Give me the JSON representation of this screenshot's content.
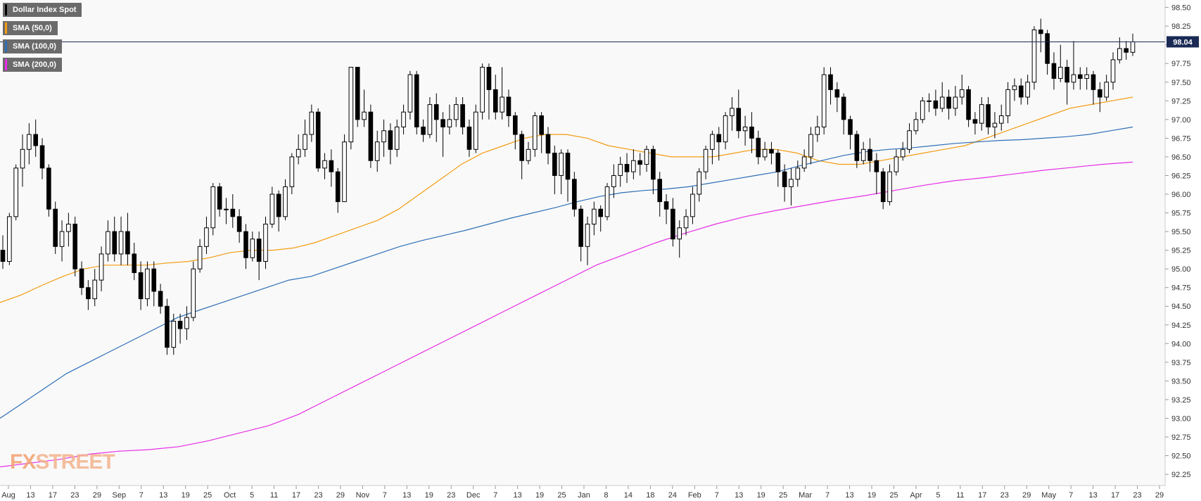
{
  "legend": [
    {
      "label": "Dollar Index Spot",
      "color": "#000000"
    },
    {
      "label": "SMA (50,0)",
      "color": "#f39c12"
    },
    {
      "label": "SMA (100,0)",
      "color": "#2e6fb7"
    },
    {
      "label": "SMA (200,0)",
      "color": "#e62ee6"
    }
  ],
  "watermark": {
    "part1": "FX",
    "part2": "STREET"
  },
  "chart_data": {
    "type": "candlestick",
    "title": "Dollar Index Spot",
    "last_price": 98.04,
    "last_price_label": "98.04",
    "ylim": [
      92.1,
      98.6
    ],
    "y_ticks": [
      "92.25",
      "92.50",
      "92.75",
      "93.00",
      "93.25",
      "93.50",
      "93.75",
      "94.00",
      "94.25",
      "94.50",
      "94.75",
      "95.00",
      "95.25",
      "95.50",
      "95.75",
      "96.00",
      "96.25",
      "96.50",
      "96.75",
      "97.00",
      "97.25",
      "97.50",
      "97.75",
      "98.00",
      "98.25",
      "98.50"
    ],
    "x_ticks": [
      "Aug",
      "13",
      "17",
      "23",
      "29",
      "Sep",
      "7",
      "13",
      "19",
      "25",
      "Oct",
      "5",
      "11",
      "17",
      "23",
      "29",
      "Nov",
      "7",
      "13",
      "19",
      "23",
      "Dec",
      "7",
      "13",
      "19",
      "25",
      "Jan",
      "8",
      "14",
      "18",
      "24",
      "Feb",
      "7",
      "13",
      "19",
      "25",
      "Mar",
      "7",
      "13",
      "19",
      "25",
      "Apr",
      "5",
      "11",
      "17",
      "23",
      "29",
      "May",
      "7",
      "13",
      "17",
      "23",
      "29"
    ],
    "candles": [
      [
        95.25,
        95.1,
        95.45,
        95.0
      ],
      [
        95.1,
        95.7,
        95.75,
        95.05
      ],
      [
        95.7,
        96.35,
        96.4,
        95.65
      ],
      [
        96.35,
        96.6,
        96.8,
        96.1
      ],
      [
        96.6,
        96.8,
        96.95,
        96.4
      ],
      [
        96.8,
        96.65,
        97.0,
        96.5
      ],
      [
        96.65,
        96.35,
        96.75,
        96.2
      ],
      [
        96.35,
        95.8,
        96.4,
        95.7
      ],
      [
        95.8,
        95.3,
        95.9,
        95.2
      ],
      [
        95.3,
        95.5,
        95.65,
        95.1
      ],
      [
        95.5,
        95.6,
        95.75,
        95.3
      ],
      [
        95.6,
        95.0,
        95.7,
        94.9
      ],
      [
        95.0,
        94.75,
        95.1,
        94.65
      ],
      [
        94.75,
        94.6,
        94.85,
        94.45
      ],
      [
        94.6,
        94.85,
        95.0,
        94.5
      ],
      [
        94.85,
        95.2,
        95.3,
        94.7
      ],
      [
        95.2,
        95.5,
        95.65,
        95.1
      ],
      [
        95.5,
        95.2,
        95.7,
        95.1
      ],
      [
        95.2,
        95.5,
        95.7,
        95.05
      ],
      [
        95.5,
        95.2,
        95.75,
        95.05
      ],
      [
        95.2,
        94.95,
        95.35,
        94.85
      ],
      [
        94.95,
        94.6,
        95.1,
        94.45
      ],
      [
        94.6,
        95.0,
        95.1,
        94.5
      ],
      [
        95.0,
        94.7,
        95.1,
        94.5
      ],
      [
        94.7,
        94.5,
        94.8,
        94.4
      ],
      [
        94.5,
        93.95,
        94.6,
        93.85
      ],
      [
        93.95,
        94.3,
        94.4,
        93.85
      ],
      [
        94.3,
        94.2,
        94.4,
        94.0
      ],
      [
        94.2,
        94.35,
        94.5,
        94.05
      ],
      [
        94.35,
        95.0,
        95.1,
        94.3
      ],
      [
        95.0,
        95.3,
        95.4,
        94.95
      ],
      [
        95.3,
        95.55,
        95.7,
        95.2
      ],
      [
        95.55,
        96.1,
        96.15,
        95.45
      ],
      [
        96.1,
        95.8,
        96.15,
        95.7
      ],
      [
        95.8,
        95.8,
        95.95,
        95.6
      ],
      [
        95.8,
        95.7,
        96.0,
        95.55
      ],
      [
        95.7,
        95.5,
        95.8,
        95.35
      ],
      [
        95.5,
        95.15,
        95.6,
        95.0
      ],
      [
        95.15,
        95.4,
        95.5,
        95.1
      ],
      [
        95.4,
        95.1,
        95.5,
        94.85
      ],
      [
        95.1,
        95.6,
        95.7,
        95.0
      ],
      [
        95.6,
        96.0,
        96.1,
        95.55
      ],
      [
        96.0,
        95.7,
        96.05,
        95.5
      ],
      [
        95.7,
        96.1,
        96.2,
        95.65
      ],
      [
        96.1,
        96.5,
        96.55,
        96.0
      ],
      [
        96.5,
        96.6,
        96.8,
        96.4
      ],
      [
        96.6,
        96.8,
        97.0,
        96.5
      ],
      [
        96.8,
        97.1,
        97.2,
        96.7
      ],
      [
        97.1,
        96.35,
        97.15,
        96.3
      ],
      [
        96.35,
        96.45,
        96.55,
        96.2
      ],
      [
        96.45,
        96.3,
        96.6,
        96.1
      ],
      [
        96.3,
        95.9,
        96.35,
        95.75
      ],
      [
        95.9,
        96.7,
        96.8,
        95.9
      ],
      [
        96.7,
        97.7,
        97.7,
        96.6
      ],
      [
        97.7,
        97.0,
        97.7,
        96.9
      ],
      [
        97.0,
        97.1,
        97.4,
        96.9
      ],
      [
        97.1,
        96.45,
        97.2,
        96.35
      ],
      [
        96.45,
        96.7,
        96.85,
        96.3
      ],
      [
        96.7,
        96.85,
        97.0,
        96.5
      ],
      [
        96.85,
        96.6,
        96.95,
        96.4
      ],
      [
        96.6,
        96.9,
        97.0,
        96.5
      ],
      [
        96.9,
        97.1,
        97.2,
        96.8
      ],
      [
        97.1,
        97.6,
        97.65,
        97.0
      ],
      [
        97.6,
        96.9,
        97.65,
        96.8
      ],
      [
        96.9,
        96.8,
        97.0,
        96.7
      ],
      [
        96.8,
        97.2,
        97.3,
        96.75
      ],
      [
        97.2,
        97.0,
        97.35,
        96.7
      ],
      [
        97.0,
        96.9,
        97.1,
        96.5
      ],
      [
        96.9,
        97.0,
        97.2,
        96.8
      ],
      [
        97.0,
        97.2,
        97.3,
        96.9
      ],
      [
        97.2,
        96.9,
        97.3,
        96.8
      ],
      [
        96.9,
        96.6,
        97.0,
        96.5
      ],
      [
        96.6,
        97.1,
        97.2,
        96.55
      ],
      [
        97.1,
        97.7,
        97.75,
        97.0
      ],
      [
        97.7,
        97.4,
        97.75,
        97.0
      ],
      [
        97.4,
        97.1,
        97.6,
        97.0
      ],
      [
        97.1,
        97.3,
        97.7,
        97.0
      ],
      [
        97.3,
        97.05,
        97.4,
        96.9
      ],
      [
        97.05,
        96.8,
        97.1,
        96.6
      ],
      [
        96.8,
        96.45,
        96.85,
        96.2
      ],
      [
        96.45,
        96.6,
        96.7,
        96.4
      ],
      [
        96.6,
        97.05,
        97.1,
        96.5
      ],
      [
        97.05,
        96.8,
        97.1,
        96.55
      ],
      [
        96.8,
        96.55,
        96.9,
        96.4
      ],
      [
        96.55,
        96.25,
        96.65,
        96.0
      ],
      [
        96.25,
        96.55,
        96.6,
        96.0
      ],
      [
        96.55,
        96.2,
        96.6,
        95.9
      ],
      [
        96.2,
        95.8,
        96.3,
        95.7
      ],
      [
        95.8,
        95.3,
        95.85,
        95.1
      ],
      [
        95.3,
        95.6,
        95.7,
        95.05
      ],
      [
        95.6,
        95.8,
        95.9,
        95.45
      ],
      [
        95.8,
        95.7,
        95.85,
        95.5
      ],
      [
        95.7,
        96.1,
        96.15,
        95.65
      ],
      [
        96.1,
        96.25,
        96.4,
        95.95
      ],
      [
        96.25,
        96.4,
        96.5,
        96.1
      ],
      [
        96.4,
        96.3,
        96.55,
        96.15
      ],
      [
        96.3,
        96.45,
        96.6,
        96.2
      ],
      [
        96.45,
        96.4,
        96.55,
        96.25
      ],
      [
        96.4,
        96.6,
        96.65,
        96.3
      ],
      [
        96.6,
        96.2,
        96.65,
        96.0
      ],
      [
        96.2,
        95.9,
        96.3,
        95.7
      ],
      [
        95.9,
        95.8,
        96.0,
        95.6
      ],
      [
        95.8,
        95.4,
        95.95,
        95.3
      ],
      [
        95.4,
        95.55,
        95.65,
        95.15
      ],
      [
        95.55,
        95.7,
        95.8,
        95.45
      ],
      [
        95.7,
        96.0,
        96.1,
        95.6
      ],
      [
        96.0,
        96.3,
        96.35,
        95.9
      ],
      [
        96.3,
        96.6,
        96.65,
        96.2
      ],
      [
        96.6,
        96.8,
        96.85,
        96.4
      ],
      [
        96.8,
        96.7,
        96.9,
        96.45
      ],
      [
        96.7,
        97.05,
        97.1,
        96.6
      ],
      [
        97.05,
        97.15,
        97.3,
        96.85
      ],
      [
        97.15,
        96.85,
        97.4,
        96.75
      ],
      [
        96.85,
        96.9,
        97.05,
        96.65
      ],
      [
        96.9,
        96.75,
        97.1,
        96.55
      ],
      [
        96.75,
        96.5,
        96.85,
        96.4
      ],
      [
        96.5,
        96.6,
        96.7,
        96.45
      ],
      [
        96.6,
        96.55,
        96.7,
        96.4
      ],
      [
        96.55,
        96.3,
        96.6,
        96.1
      ],
      [
        96.3,
        96.1,
        96.4,
        95.9
      ],
      [
        96.1,
        96.2,
        96.35,
        95.85
      ],
      [
        96.2,
        96.35,
        96.45,
        96.1
      ],
      [
        96.35,
        96.5,
        96.6,
        96.3
      ],
      [
        96.5,
        96.8,
        96.9,
        96.4
      ],
      [
        96.8,
        96.9,
        97.05,
        96.7
      ],
      [
        96.9,
        97.6,
        97.7,
        96.8
      ],
      [
        97.6,
        97.4,
        97.7,
        97.2
      ],
      [
        97.4,
        97.3,
        97.5,
        97.1
      ],
      [
        97.3,
        97.0,
        97.35,
        96.8
      ],
      [
        97.0,
        96.8,
        97.05,
        96.6
      ],
      [
        96.8,
        96.45,
        96.85,
        96.35
      ],
      [
        96.45,
        96.6,
        96.7,
        96.4
      ],
      [
        96.6,
        96.45,
        96.75,
        96.3
      ],
      [
        96.45,
        96.3,
        96.55,
        96.0
      ],
      [
        96.3,
        95.9,
        96.35,
        95.8
      ],
      [
        95.9,
        96.3,
        96.4,
        95.85
      ],
      [
        96.3,
        96.5,
        96.6,
        96.25
      ],
      [
        96.5,
        96.6,
        96.7,
        96.45
      ],
      [
        96.6,
        96.85,
        96.95,
        96.55
      ],
      [
        96.85,
        97.0,
        97.1,
        96.8
      ],
      [
        97.0,
        97.25,
        97.3,
        96.95
      ],
      [
        97.25,
        97.25,
        97.35,
        97.1
      ],
      [
        97.25,
        97.15,
        97.4,
        97.05
      ],
      [
        97.15,
        97.3,
        97.5,
        97.1
      ],
      [
        97.3,
        97.15,
        97.4,
        97.0
      ],
      [
        97.15,
        97.3,
        97.45,
        97.05
      ],
      [
        97.3,
        97.4,
        97.6,
        97.2
      ],
      [
        97.4,
        97.0,
        97.45,
        96.9
      ],
      [
        97.0,
        96.95,
        97.1,
        96.8
      ],
      [
        96.95,
        97.2,
        97.3,
        96.85
      ],
      [
        97.2,
        96.9,
        97.3,
        96.8
      ],
      [
        96.9,
        96.95,
        97.1,
        96.75
      ],
      [
        96.95,
        97.05,
        97.2,
        96.85
      ],
      [
        97.05,
        97.4,
        97.5,
        96.95
      ],
      [
        97.4,
        97.45,
        97.55,
        97.25
      ],
      [
        97.45,
        97.3,
        97.55,
        97.2
      ],
      [
        97.3,
        97.5,
        97.6,
        97.2
      ],
      [
        97.5,
        98.2,
        98.25,
        97.4
      ],
      [
        98.2,
        98.15,
        98.35,
        97.9
      ],
      [
        98.15,
        97.75,
        98.2,
        97.6
      ],
      [
        97.75,
        97.55,
        97.9,
        97.4
      ],
      [
        97.55,
        97.7,
        98.0,
        97.5
      ],
      [
        97.7,
        97.5,
        97.8,
        97.2
      ],
      [
        97.5,
        97.6,
        98.05,
        97.4
      ],
      [
        97.6,
        97.55,
        97.7,
        97.4
      ],
      [
        97.55,
        97.6,
        97.7,
        97.4
      ],
      [
        97.6,
        97.4,
        97.65,
        97.2
      ],
      [
        97.4,
        97.3,
        97.5,
        97.1
      ],
      [
        97.3,
        97.5,
        97.6,
        97.25
      ],
      [
        97.5,
        97.8,
        97.9,
        97.4
      ],
      [
        97.8,
        97.95,
        98.1,
        97.75
      ],
      [
        97.95,
        97.9,
        98.05,
        97.8
      ],
      [
        97.9,
        98.04,
        98.15,
        97.85
      ]
    ],
    "series": [
      {
        "name": "SMA (50,0)",
        "color": "#f39c12",
        "values": [
          94.55,
          94.65,
          94.78,
          94.9,
          95.0,
          95.05,
          95.05,
          95.05,
          95.08,
          95.1,
          95.15,
          95.22,
          95.25,
          95.25,
          95.28,
          95.35,
          95.45,
          95.55,
          95.65,
          95.8,
          96.0,
          96.2,
          96.4,
          96.55,
          96.65,
          96.75,
          96.8,
          96.8,
          96.75,
          96.65,
          96.6,
          96.55,
          96.5,
          96.5,
          96.5,
          96.55,
          96.6,
          96.6,
          96.55,
          96.45,
          96.4,
          96.4,
          96.45,
          96.5,
          96.55,
          96.6,
          96.65,
          96.75,
          96.85,
          96.95,
          97.05,
          97.15,
          97.2,
          97.25,
          97.3
        ]
      },
      {
        "name": "SMA (100,0)",
        "color": "#2e6fb7",
        "values": [
          93.0,
          93.2,
          93.4,
          93.6,
          93.75,
          93.9,
          94.05,
          94.2,
          94.35,
          94.45,
          94.55,
          94.65,
          94.75,
          94.85,
          94.9,
          95.0,
          95.1,
          95.2,
          95.3,
          95.38,
          95.45,
          95.52,
          95.6,
          95.68,
          95.75,
          95.82,
          95.9,
          95.97,
          96.02,
          96.05,
          96.07,
          96.1,
          96.15,
          96.2,
          96.25,
          96.3,
          96.38,
          96.45,
          96.52,
          96.57,
          96.6,
          96.62,
          96.65,
          96.68,
          96.7,
          96.72,
          96.73,
          96.75,
          96.77,
          96.8,
          96.85,
          96.9
        ]
      },
      {
        "name": "SMA (200,0)",
        "color": "#e62ee6",
        "values": [
          92.35,
          92.4,
          92.45,
          92.52,
          92.56,
          92.58,
          92.62,
          92.7,
          92.8,
          92.9,
          93.05,
          93.25,
          93.45,
          93.65,
          93.85,
          94.05,
          94.25,
          94.45,
          94.65,
          94.85,
          95.05,
          95.2,
          95.35,
          95.48,
          95.6,
          95.7,
          95.78,
          95.85,
          95.92,
          95.98,
          96.05,
          96.12,
          96.18,
          96.22,
          96.27,
          96.32,
          96.36,
          96.4,
          96.43
        ]
      }
    ]
  }
}
